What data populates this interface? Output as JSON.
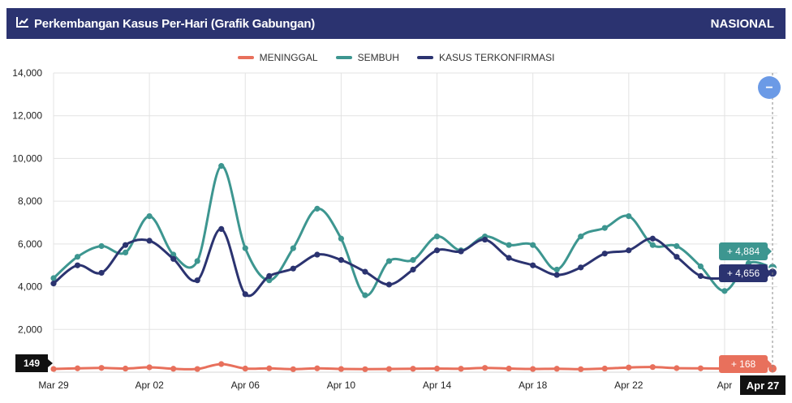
{
  "header": {
    "icon": "line-chart-icon",
    "title": "Perkembangan Kasus Per-Hari (Grafik Gabungan)",
    "region": "NASIONAL",
    "background": "#2b3370"
  },
  "chart_data": {
    "type": "line",
    "title": "Perkembangan Kasus Per-Hari (Grafik Gabungan)",
    "xlabel": "",
    "ylabel": "",
    "ylim": [
      0,
      14000
    ],
    "yticks": [
      0,
      2000,
      4000,
      6000,
      8000,
      10000,
      12000,
      14000
    ],
    "ytick_labels": [
      "0",
      "2,000",
      "4,000",
      "6,000",
      "8,000",
      "10,000",
      "12,000",
      "14,000"
    ],
    "x_tick_labels": [
      {
        "index": 0,
        "label": "Mar 29"
      },
      {
        "index": 4,
        "label": "Apr 02"
      },
      {
        "index": 8,
        "label": "Apr 06"
      },
      {
        "index": 12,
        "label": "Apr 10"
      },
      {
        "index": 16,
        "label": "Apr 14"
      },
      {
        "index": 20,
        "label": "Apr 18"
      },
      {
        "index": 24,
        "label": "Apr 22"
      },
      {
        "index": 28,
        "label": "Apr"
      }
    ],
    "x": [
      "Mar 28",
      "Mar 29",
      "Mar 30",
      "Mar 31",
      "Apr 01",
      "Apr 02",
      "Apr 03",
      "Apr 04",
      "Apr 05",
      "Apr 06",
      "Apr 07",
      "Apr 08",
      "Apr 09",
      "Apr 10",
      "Apr 11",
      "Apr 12",
      "Apr 13",
      "Apr 14",
      "Apr 15",
      "Apr 16",
      "Apr 17",
      "Apr 18",
      "Apr 19",
      "Apr 20",
      "Apr 21",
      "Apr 22",
      "Apr 23",
      "Apr 24",
      "Apr 25",
      "Apr 26",
      "Apr 27"
    ],
    "series": [
      {
        "name": "MENINGGAL",
        "color": "#e8705c",
        "values": [
          150,
          180,
          200,
          170,
          230,
          160,
          150,
          380,
          170,
          180,
          140,
          180,
          150,
          140,
          150,
          160,
          170,
          160,
          200,
          170,
          150,
          160,
          140,
          170,
          220,
          240,
          190,
          180,
          170,
          150,
          168
        ]
      },
      {
        "name": "SEMBUH",
        "color": "#3d9690",
        "values": [
          4400,
          5400,
          5900,
          5600,
          7300,
          5500,
          5200,
          9650,
          5800,
          4300,
          5800,
          7650,
          6250,
          3600,
          5200,
          5250,
          6350,
          5700,
          6350,
          5950,
          5950,
          4800,
          6350,
          6750,
          7300,
          5950,
          5900,
          4950,
          3800,
          5100,
          4884
        ]
      },
      {
        "name": "KASUS TERKONFIRMASI",
        "color": "#2b3370",
        "values": [
          4150,
          5000,
          4650,
          5950,
          6150,
          5300,
          4300,
          6700,
          3650,
          4500,
          4850,
          5500,
          5250,
          4700,
          4100,
          4800,
          5700,
          5650,
          6200,
          5350,
          5000,
          4550,
          4900,
          5550,
          5700,
          6250,
          5400,
          4500,
          4400,
          4600,
          4656
        ]
      }
    ],
    "hover": {
      "x_label": "Apr 27",
      "y_axis_value": "149",
      "tooltips": [
        {
          "series": "SEMBUH",
          "text": "+ 4,884",
          "color": "#3d9690"
        },
        {
          "series": "KASUS TERKONFIRMASI",
          "text": "+ 4,656",
          "color": "#2b3370"
        },
        {
          "series": "MENINGGAL",
          "text": "+ 168",
          "color": "#e8705c"
        }
      ]
    },
    "zoom_button": {
      "symbol": "−",
      "color": "#6b9ae6"
    },
    "grid": true,
    "legend_position": "top-center"
  }
}
